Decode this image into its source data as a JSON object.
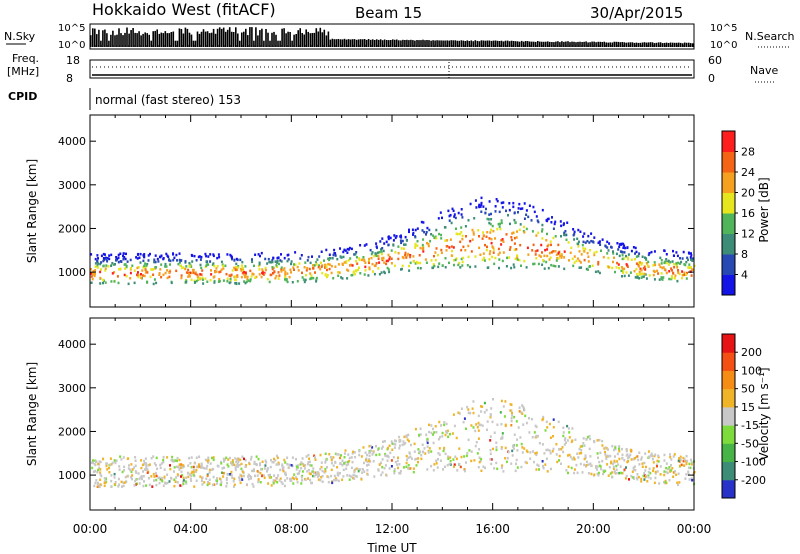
{
  "header": {
    "station": "Hokkaido West (fitACF)",
    "beam": "Beam 15",
    "date": "30/Apr/2015"
  },
  "strip": {
    "nsky_label": "N.Sky",
    "nsearch_label": "N.Search",
    "count_ticks": [
      "10^5",
      "10^0"
    ],
    "freq_label_1": "Freq.",
    "freq_label_2": "[MHz]",
    "freq_ticks": [
      "18",
      "8"
    ],
    "nave_label": "Nave",
    "nave_ticks": [
      "60",
      "0"
    ],
    "cpid_label": "CPID",
    "cpid_text": "normal (fast stereo) 153"
  },
  "chart_data": [
    {
      "type": "heatmap",
      "name": "power",
      "xlabel": "Time UT",
      "ylabel": "Slant Range [km]",
      "ylim": [
        200,
        4600
      ],
      "xlim": [
        0,
        24
      ],
      "yticks": [
        "1000",
        "2000",
        "3000",
        "4000"
      ],
      "colorbar_label": "Power [dB]",
      "colorbar_ticks": [
        "4",
        "8",
        "12",
        "16",
        "20",
        "24",
        "28"
      ],
      "colorbar_colors": [
        "#1414e6",
        "#2848b4",
        "#3c8c78",
        "#50b45a",
        "#e6e61e",
        "#f5a01e",
        "#f56414",
        "#ff1e1e"
      ]
    },
    {
      "type": "heatmap",
      "name": "velocity",
      "xlabel": "Time UT",
      "ylabel": "Slant Range [km]",
      "ylim": [
        200,
        4600
      ],
      "xlim": [
        0,
        24
      ],
      "yticks": [
        "1000",
        "2000",
        "3000",
        "4000"
      ],
      "colorbar_label": "Velocity [m s⁻¹]",
      "colorbar_ticks": [
        "200",
        "100",
        "50",
        "15",
        "-15",
        "-50",
        "-100",
        "-200"
      ],
      "colorbar_colors": [
        "#2832c8",
        "#3c8c78",
        "#46b446",
        "#7ddc3c",
        "#c8c8c8",
        "#f0b428",
        "#f58c14",
        "#f55014",
        "#e61414"
      ],
      "ground_scatter_color": "#c8c8c8"
    }
  ],
  "time_axis": {
    "ticks": [
      "00:00",
      "04:00",
      "08:00",
      "12:00",
      "16:00",
      "20:00",
      "00:00"
    ],
    "label": "Time UT"
  }
}
